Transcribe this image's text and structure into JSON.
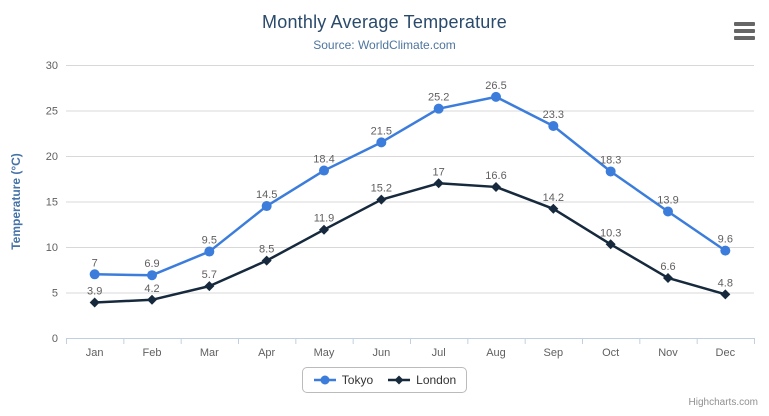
{
  "chart_data": {
    "type": "line",
    "title": "Monthly Average Temperature",
    "subtitle": "Source: WorldClimate.com",
    "ylabel": "Temperature (°C)",
    "xlabel": "",
    "categories": [
      "Jan",
      "Feb",
      "Mar",
      "Apr",
      "May",
      "Jun",
      "Jul",
      "Aug",
      "Sep",
      "Oct",
      "Nov",
      "Dec"
    ],
    "series": [
      {
        "name": "Tokyo",
        "marker": "circle",
        "color": "#3c7ddc",
        "values": [
          7,
          6.9,
          9.5,
          14.5,
          18.4,
          21.5,
          25.2,
          26.5,
          23.3,
          18.3,
          13.9,
          9.6
        ]
      },
      {
        "name": "London",
        "marker": "diamond",
        "color": "#16293d",
        "values": [
          3.9,
          4.2,
          5.7,
          8.5,
          11.9,
          15.2,
          17,
          16.6,
          14.2,
          10.3,
          6.6,
          4.8
        ]
      }
    ],
    "ylim": [
      0,
      30
    ],
    "ytick_interval": 5,
    "grid": true,
    "legend_position": "bottom",
    "data_labels": true
  },
  "credits": "Highcharts.com",
  "menu_icon": "hamburger-icon",
  "palette": {
    "title": "#2a4a6b",
    "subtitle": "#4d759e",
    "axis_title": "#4572a7",
    "tick_label": "#606060",
    "data_label": "#606060",
    "grid_line": "#d8d8d8",
    "axis_line": "#c0d0e0",
    "legend_border": "#bbbbbb",
    "legend_text": "#333333",
    "credits_text": "#909090",
    "menu_icon": "#666666",
    "background": "#ffffff"
  }
}
